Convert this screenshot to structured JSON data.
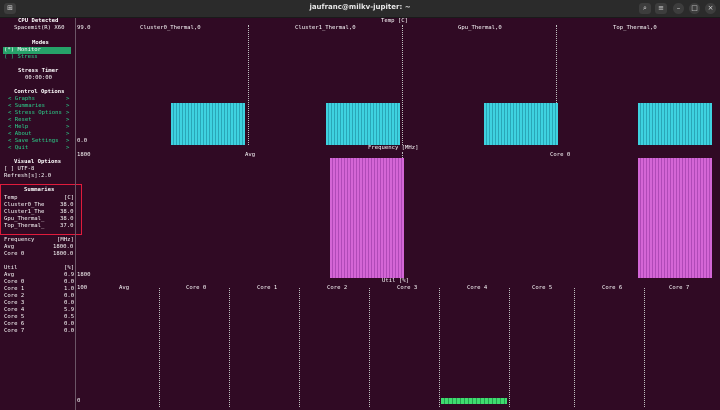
{
  "window": {
    "title": "jaufranc@milkv-jupiter: ~",
    "buttons": {
      "new_tab": "⊞",
      "search": "⌕",
      "menu": "≡",
      "minimize": "–",
      "maximize": "□",
      "close": "×"
    }
  },
  "sidebar": {
    "cpu_detected_label": "CPU Detected",
    "cpu_name": "Spacemit(R) X60",
    "modes_label": "Modes",
    "mode_monitor": "(*) Monitor",
    "mode_stress": "( ) Stress",
    "stress_timer_label": "Stress Timer",
    "stress_timer_value": "00:00:00",
    "control_options_label": "Control Options",
    "menu": [
      {
        "label": "< Graphs",
        "arrow": ">"
      },
      {
        "label": "< Summaries",
        "arrow": ">"
      },
      {
        "label": "< Stress Options",
        "arrow": ">"
      },
      {
        "label": "< Reset",
        "arrow": ">"
      },
      {
        "label": "< Help",
        "arrow": ">"
      },
      {
        "label": "< About",
        "arrow": ">"
      },
      {
        "label": "< Save Settings",
        "arrow": ">"
      },
      {
        "label": "< Quit",
        "arrow": ">"
      }
    ],
    "visual_options_label": "Visual Options",
    "utf8": "[ ] UTF-8",
    "refresh": "Refresh[s]:2.0",
    "summaries": {
      "label": "Summaries",
      "temp_header": [
        "Temp",
        "[C]"
      ],
      "temp_rows": [
        [
          "Cluster0_The",
          "38.0"
        ],
        [
          "Cluster1_The",
          "38.0"
        ],
        [
          "Gpu_Thermal_",
          "38.0"
        ],
        [
          "Top_Thermal_",
          "37.0"
        ]
      ],
      "freq_header": [
        "Frequency",
        "[MHz]"
      ],
      "freq_rows": [
        [
          "Avg",
          "1800.0"
        ],
        [
          "Core 0",
          "1800.0"
        ]
      ],
      "util_header": [
        "Util",
        "[%]"
      ],
      "util_rows": [
        [
          "Avg",
          "0.9"
        ],
        [
          "Core 0",
          "0.0"
        ],
        [
          "Core 1",
          "1.0"
        ],
        [
          "Core 2",
          "0.0"
        ],
        [
          "Core 3",
          "0.0"
        ],
        [
          "Core 4",
          "5.9"
        ],
        [
          "Core 5",
          "0.5"
        ],
        [
          "Core 6",
          "0.0"
        ],
        [
          "Core 7",
          "0.0"
        ]
      ]
    }
  },
  "graphs": {
    "temp": {
      "title": "Temp [C]",
      "ymax": "99.0",
      "ymin": "0.0",
      "columns": [
        "Cluster0_Thermal,0",
        "Cluster1_Thermal,0",
        "Gpu_Thermal,0",
        "Top_Thermal,0"
      ]
    },
    "frequency": {
      "title": "Frequency [MHz]",
      "ymax": "1800",
      "ymin": "1800",
      "columns": [
        "Avg",
        "Core 0"
      ]
    },
    "util": {
      "title": "Util [%]",
      "ymax": "100",
      "ymin": "0",
      "columns": [
        "Avg",
        "Core 0",
        "Core 1",
        "Core 2",
        "Core 3",
        "Core 4",
        "Core 5",
        "Core 6",
        "Core 7"
      ]
    }
  },
  "colors": {
    "background": "#300a24",
    "temp_bars": "#3ed2e0",
    "freq_bars": "#d466d6",
    "util_bars": "#3fdc70",
    "selected_mode": "#26a269",
    "highlight_box": "#e01b3c"
  }
}
